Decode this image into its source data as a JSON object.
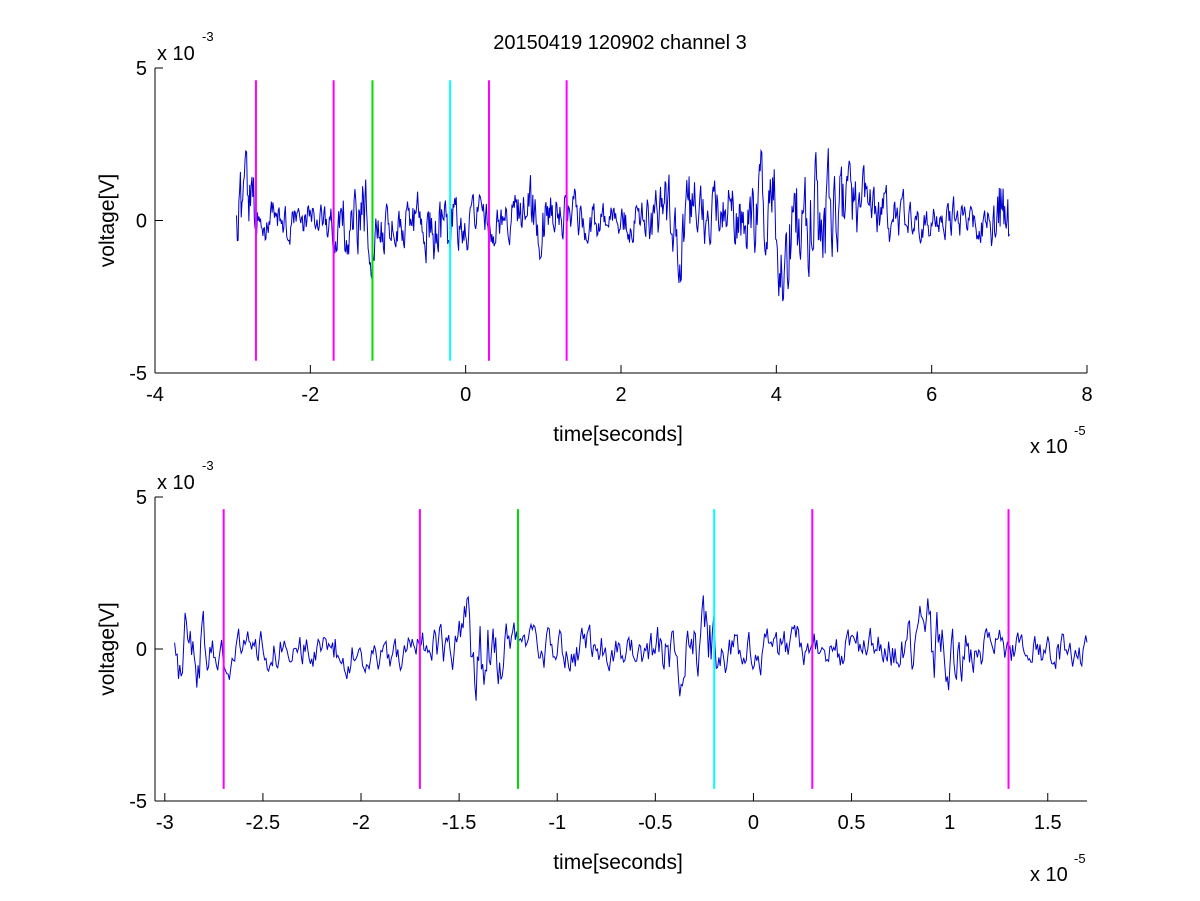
{
  "title": "20150419 120902 channel 3",
  "colors": {
    "signal": "#0000cc",
    "marker_magenta": "#ff00ff",
    "marker_green": "#00dd00",
    "marker_cyan": "#00ffff",
    "axis": "#000000"
  },
  "chart_data": [
    {
      "type": "line",
      "title": "20150419 120902 channel 3",
      "xlabel": "time[seconds]",
      "ylabel": "voltage[V]",
      "x_multiplier": "x 10",
      "x_exponent": "-5",
      "y_multiplier": "x 10",
      "y_exponent": "-3",
      "xlim": [
        -4,
        8
      ],
      "ylim": [
        -5,
        5
      ],
      "x_ticks": [
        -4,
        -2,
        0,
        2,
        4,
        6,
        8
      ],
      "x_tick_labels": [
        "-4",
        "-2",
        "0",
        "2",
        "4",
        "6",
        "8"
      ],
      "y_ticks": [
        -5,
        0,
        5
      ],
      "y_tick_labels": [
        "-5",
        "0",
        "5"
      ],
      "signal": {
        "x_start": -2.95,
        "x_end": 7.0,
        "n": 1000,
        "seed": 20150419,
        "noise_amp": 0.85,
        "bursts": [
          {
            "center": -2.85,
            "amp": 2.2,
            "width": 0.15
          },
          {
            "center": -1.35,
            "amp": 1.6,
            "width": 0.3
          },
          {
            "center": -0.35,
            "amp": 1.5,
            "width": 0.3
          },
          {
            "center": 1.0,
            "amp": 1.3,
            "width": 0.4
          },
          {
            "center": 2.8,
            "amp": 1.6,
            "width": 0.4
          },
          {
            "center": 4.3,
            "amp": 2.6,
            "width": 0.8
          },
          {
            "center": 6.9,
            "amp": 1.8,
            "width": 0.15
          }
        ]
      },
      "markers": [
        {
          "x": -2.7,
          "color": "magenta",
          "y_range": [
            -4.6,
            4.6
          ]
        },
        {
          "x": -1.7,
          "color": "magenta",
          "y_range": [
            -4.6,
            4.6
          ]
        },
        {
          "x": -1.2,
          "color": "green",
          "y_range": [
            -4.6,
            4.6
          ]
        },
        {
          "x": -0.2,
          "color": "cyan",
          "y_range": [
            -4.6,
            4.6
          ]
        },
        {
          "x": 0.3,
          "color": "magenta",
          "y_range": [
            -4.6,
            4.6
          ]
        },
        {
          "x": 1.3,
          "color": "magenta",
          "y_range": [
            -4.6,
            4.6
          ]
        }
      ]
    },
    {
      "type": "line",
      "xlabel": "time[seconds]",
      "ylabel": "voltage[V]",
      "x_multiplier": "x 10",
      "x_exponent": "-5",
      "y_multiplier": "x 10",
      "y_exponent": "-3",
      "xlim": [
        -3.05,
        1.7
      ],
      "ylim": [
        -5,
        5
      ],
      "x_ticks": [
        -3,
        -2.5,
        -2,
        -1.5,
        -1,
        -0.5,
        0,
        0.5,
        1,
        1.5
      ],
      "x_tick_labels": [
        "-3",
        "-2.5",
        "-2",
        "-1.5",
        "-1",
        "-0.5",
        "0",
        "0.5",
        "1",
        "1.5"
      ],
      "y_ticks": [
        -5,
        0,
        5
      ],
      "y_tick_labels": [
        "-5",
        "0",
        "5"
      ],
      "signal": {
        "x_start": -2.95,
        "x_end": 1.7,
        "n": 700,
        "seed": 905,
        "noise_amp": 0.9,
        "bursts": [
          {
            "center": -2.9,
            "amp": 2.2,
            "width": 0.1
          },
          {
            "center": -1.4,
            "amp": 1.8,
            "width": 0.15
          },
          {
            "center": -0.3,
            "amp": 1.6,
            "width": 0.15
          },
          {
            "center": 0.95,
            "amp": 1.6,
            "width": 0.15
          }
        ]
      },
      "markers": [
        {
          "x": -2.7,
          "color": "magenta",
          "y_range": [
            -4.6,
            4.6
          ]
        },
        {
          "x": -1.7,
          "color": "magenta",
          "y_range": [
            -4.6,
            4.6
          ]
        },
        {
          "x": -1.2,
          "color": "green",
          "y_range": [
            -4.6,
            4.6
          ]
        },
        {
          "x": -0.2,
          "color": "cyan",
          "y_range": [
            -4.6,
            4.6
          ]
        },
        {
          "x": 0.3,
          "color": "magenta",
          "y_range": [
            -4.6,
            4.6
          ]
        },
        {
          "x": 1.3,
          "color": "magenta",
          "y_range": [
            -4.6,
            4.6
          ]
        }
      ]
    }
  ]
}
